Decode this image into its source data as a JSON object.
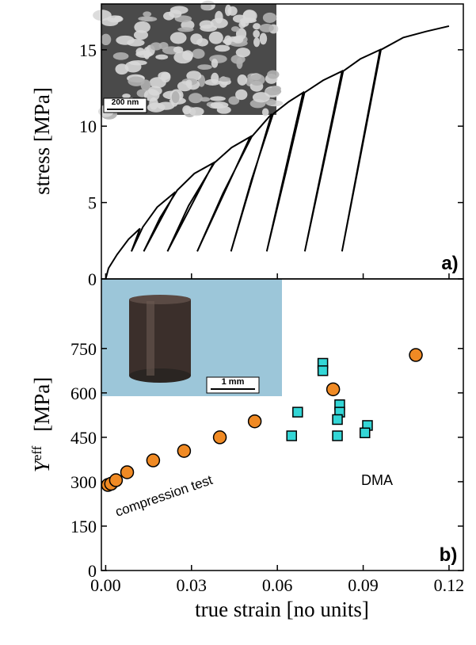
{
  "chart_data": [
    {
      "type": "line",
      "ylabel": "stress  [MPa]",
      "annotation": "a)",
      "inset_label": "200 nm",
      "xlim": [
        -0.0015,
        0.125
      ],
      "ylim": [
        0,
        18
      ],
      "yticks": [
        0,
        5,
        10,
        15
      ],
      "x": [
        0,
        0.001,
        0.004,
        0.008,
        0.012,
        0.009,
        0.013,
        0.018,
        0.0244,
        0.0133,
        0.019,
        0.025,
        0.031,
        0.0377,
        0.0216,
        0.029,
        0.038,
        0.044,
        0.0505,
        0.032,
        0.041,
        0.051,
        0.058,
        0.0438,
        0.051,
        0.0585,
        0.064,
        0.069,
        0.0563,
        0.063,
        0.0695,
        0.076,
        0.0826,
        0.0696,
        0.076,
        0.083,
        0.089,
        0.0959,
        0.0826,
        0.089,
        0.0962,
        0.104,
        0.112,
        0.12
      ],
      "series": [
        {
          "color": "#000000",
          "values": [
            0,
            0.7,
            1.6,
            2.6,
            3.3,
            1.8,
            3.4,
            4.7,
            5.7,
            1.8,
            4.0,
            5.8,
            6.9,
            7.6,
            1.8,
            4.8,
            7.6,
            8.6,
            9.3,
            1.8,
            5.6,
            9.3,
            10.8,
            1.8,
            6.5,
            10.8,
            11.6,
            12.2,
            1.8,
            7.0,
            12.2,
            13.0,
            13.6,
            1.8,
            7.4,
            13.6,
            14.4,
            15.0,
            1.8,
            8.0,
            15.0,
            15.8,
            16.2,
            16.55
          ]
        }
      ]
    },
    {
      "type": "scatter",
      "ylabel": "Y",
      "ylabel_sup": "eff",
      "ylabel_unit": "[MPa]",
      "xlabel": "true strain  [no units]",
      "annotation": "b)",
      "inset_label": "1 mm",
      "xlim": [
        -0.0015,
        0.125
      ],
      "ylim": [
        0,
        985
      ],
      "xticks": [
        {
          "value": 0,
          "label": "0.00"
        },
        0.03,
        0.06,
        0.09,
        0.12
      ],
      "yticks": [
        0,
        150,
        300,
        450,
        600,
        750
      ],
      "series": [
        {
          "name": "compression test",
          "color": "#f08a24",
          "marker": "circle",
          "x": [
            0.0008,
            0.0019,
            0.0036,
            0.0075,
            0.0166,
            0.0274,
            0.0399,
            0.0521,
            0.0795,
            0.1084
          ],
          "values": [
            289,
            293,
            305,
            332,
            372,
            404,
            450,
            504,
            612,
            728
          ]
        },
        {
          "name": "DMA",
          "color": "#33d6d6",
          "marker": "square",
          "x": [
            0.0759,
            0.0759,
            0.0671,
            0.065,
            0.0818,
            0.0818,
            0.081,
            0.081,
            0.0915,
            0.0906
          ],
          "values": [
            700,
            675,
            535,
            455,
            560,
            535,
            510,
            455,
            490,
            465
          ]
        }
      ]
    }
  ]
}
